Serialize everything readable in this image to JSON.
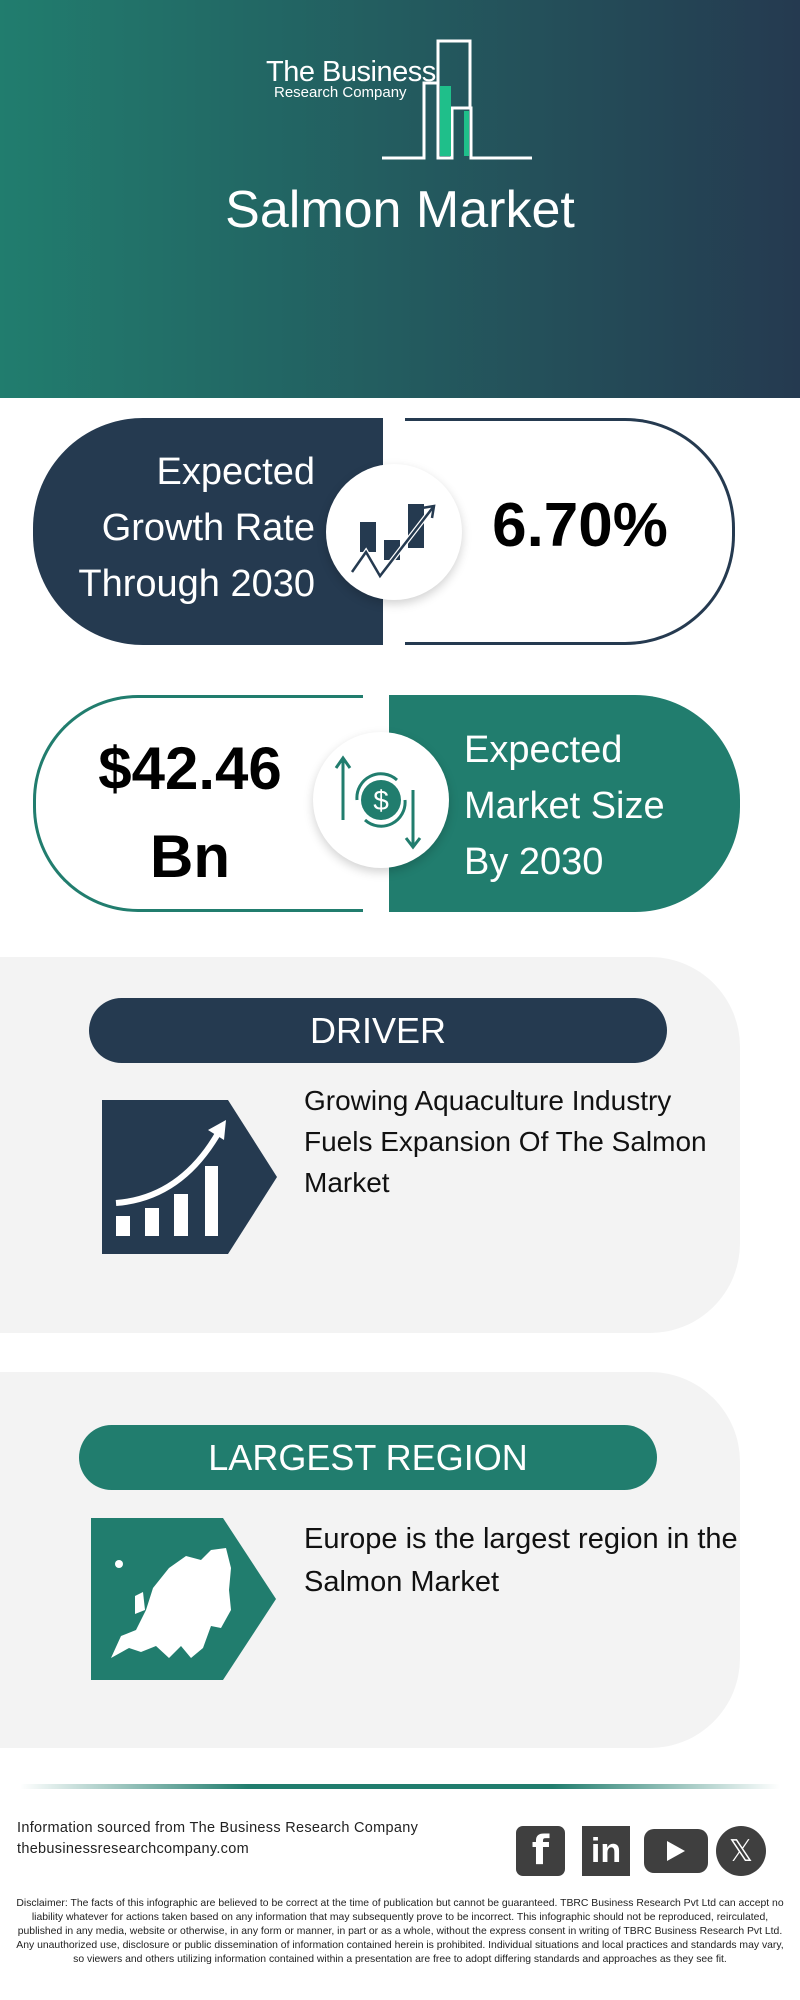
{
  "header": {
    "logo_line1": "The Business",
    "logo_line2": "Research Company",
    "title": "Salmon Market"
  },
  "growth": {
    "label_lines": [
      "Expected",
      "Growth Rate",
      "Through 2030"
    ],
    "value": "6.70%",
    "icon": "growth-chart-icon"
  },
  "market_size": {
    "value_lines": [
      "$42.46",
      "Bn"
    ],
    "label_lines": [
      "Expected",
      "Market Size",
      "By 2030"
    ],
    "icon": "dollar-cycle-icon"
  },
  "driver": {
    "heading": "DRIVER",
    "text": "Growing Aquaculture Industry Fuels Expansion Of The Salmon Market",
    "icon": "rising-bar-chart-icon"
  },
  "region": {
    "heading": "LARGEST REGION",
    "text": "Europe is the largest region in the Salmon Market",
    "icon": "europe-map-icon"
  },
  "footer": {
    "source": "Information sourced from The Business Research Company",
    "website": "thebusinessresearchcompany.com",
    "social": [
      "facebook-icon",
      "linkedin-icon",
      "youtube-icon",
      "x-icon"
    ],
    "disclaimer": "Disclaimer: The facts of this infographic are believed to be correct at the time of publication but cannot be guaranteed. TBRC Business Research Pvt Ltd can accept no liability whatever for actions taken based on any information that may subsequently prove to be incorrect. This infographic should not be reproduced, reirculated, published in any media, website or otherwise, in any form or manner, in part or as a whole, without the express consent in writing of TBRC Business Research Pvt Ltd. Any unauthorized use, disclosure or public dissemination of information contained herein is prohibited. Individual situations and local practices and standards may vary, so viewers and others utilizing information contained within a presentation are free to adopt differing standards and approaches as they see fit."
  },
  "colors": {
    "navy": "#253a50",
    "teal": "#217d6e",
    "panel": "#f3f3f3"
  }
}
